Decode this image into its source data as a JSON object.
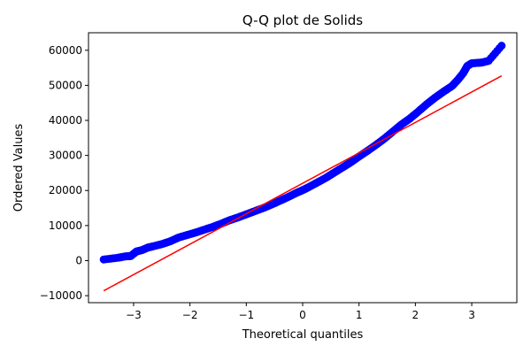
{
  "chart_data": {
    "type": "scatter",
    "title": "Q-Q plot de Solids",
    "xlabel": "Theoretical quantiles",
    "ylabel": "Ordered Values",
    "xlim": [
      -3.8,
      3.8
    ],
    "ylim": [
      -12000,
      65000
    ],
    "xticks": [
      -3,
      -2,
      -1,
      0,
      1,
      2,
      3
    ],
    "yticks": [
      -10000,
      0,
      10000,
      20000,
      30000,
      40000,
      50000,
      60000
    ],
    "xtick_labels": [
      "−3",
      "−2",
      "−1",
      "0",
      "1",
      "2",
      "3"
    ],
    "ytick_labels": [
      "−10000",
      "0",
      "10000",
      "20000",
      "30000",
      "40000",
      "50000",
      "60000"
    ],
    "grid": false,
    "series": [
      {
        "marker": "circle",
        "color": "#0000ff",
        "points": [
          [
            -3.53,
            320
          ],
          [
            -3.28,
            800
          ],
          [
            -3.15,
            1200
          ],
          [
            -3.05,
            1300
          ],
          [
            -2.95,
            2600
          ],
          [
            -2.85,
            3000
          ],
          [
            -2.75,
            3700
          ],
          [
            -2.65,
            4100
          ],
          [
            -2.5,
            4700
          ],
          [
            -2.35,
            5500
          ],
          [
            -2.2,
            6600
          ],
          [
            -2.05,
            7300
          ],
          [
            -1.9,
            8000
          ],
          [
            -1.75,
            8800
          ],
          [
            -1.6,
            9600
          ],
          [
            -1.45,
            10500
          ],
          [
            -1.3,
            11500
          ],
          [
            -1.15,
            12300
          ],
          [
            -1.0,
            13200
          ],
          [
            -0.85,
            14100
          ],
          [
            -0.7,
            15000
          ],
          [
            -0.55,
            16000
          ],
          [
            -0.4,
            17100
          ],
          [
            -0.25,
            18200
          ],
          [
            -0.1,
            19400
          ],
          [
            0.0,
            20100
          ],
          [
            0.1,
            20900
          ],
          [
            0.25,
            22200
          ],
          [
            0.4,
            23500
          ],
          [
            0.55,
            25000
          ],
          [
            0.7,
            26500
          ],
          [
            0.85,
            28000
          ],
          [
            1.0,
            29700
          ],
          [
            1.15,
            31300
          ],
          [
            1.3,
            33000
          ],
          [
            1.45,
            34800
          ],
          [
            1.6,
            36800
          ],
          [
            1.75,
            38800
          ],
          [
            1.9,
            40500
          ],
          [
            2.05,
            42500
          ],
          [
            2.2,
            44600
          ],
          [
            2.35,
            46500
          ],
          [
            2.5,
            48200
          ],
          [
            2.65,
            49800
          ],
          [
            2.75,
            51500
          ],
          [
            2.85,
            53500
          ],
          [
            2.92,
            55500
          ],
          [
            3.0,
            56300
          ],
          [
            3.1,
            56400
          ],
          [
            3.18,
            56500
          ],
          [
            3.3,
            57000
          ],
          [
            3.53,
            61300
          ]
        ]
      },
      {
        "type": "line",
        "color": "#ff0000",
        "points": [
          [
            -3.53,
            -8600
          ],
          [
            3.53,
            52700
          ]
        ]
      }
    ]
  }
}
